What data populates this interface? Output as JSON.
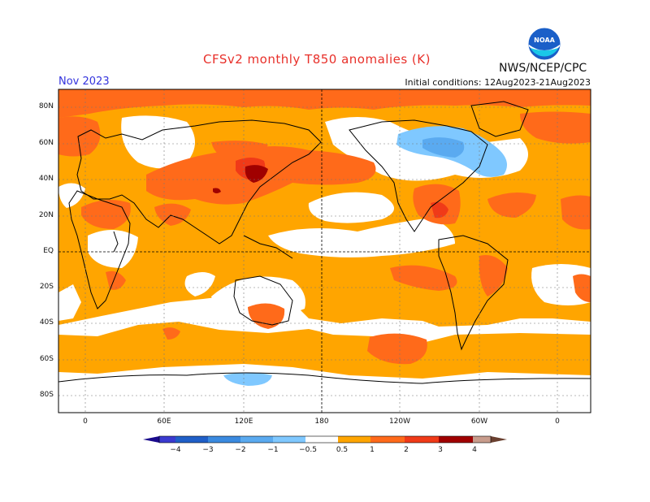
{
  "title": "CFSv2 monthly T850 anomalies (K)",
  "agency": "NWS/NCEP/CPC",
  "logo_text": "NOAA",
  "month": "Nov 2023",
  "initial_conditions": "Initial conditions: 12Aug2023-21Aug2023",
  "colors": {
    "title": "#e8302a",
    "month": "#3333dd",
    "frame": "#000000"
  },
  "lat_labels": [
    "80N",
    "60N",
    "40N",
    "20N",
    "EQ",
    "20S",
    "40S",
    "60S",
    "80S"
  ],
  "lon_labels": [
    "0",
    "60E",
    "120E",
    "180",
    "120W",
    "60W",
    "0"
  ],
  "legend": {
    "labels": [
      "−4",
      "−3",
      "−2",
      "−1",
      "−0.5",
      "0.5",
      "1",
      "2",
      "3",
      "4"
    ],
    "colors": [
      "#1a0a8c",
      "#3a3ad0",
      "#1f5fc8",
      "#3a8ae0",
      "#5aaaf0",
      "#7fc8ff",
      "#ffffff",
      "#ffa500",
      "#ff6a1a",
      "#f03a18",
      "#a00000",
      "#c89c8c",
      "#6a4030"
    ]
  },
  "map": {
    "lat_range": [
      -90,
      90
    ],
    "lon_range": [
      -20,
      380
    ],
    "background_color": "#ffffff"
  }
}
